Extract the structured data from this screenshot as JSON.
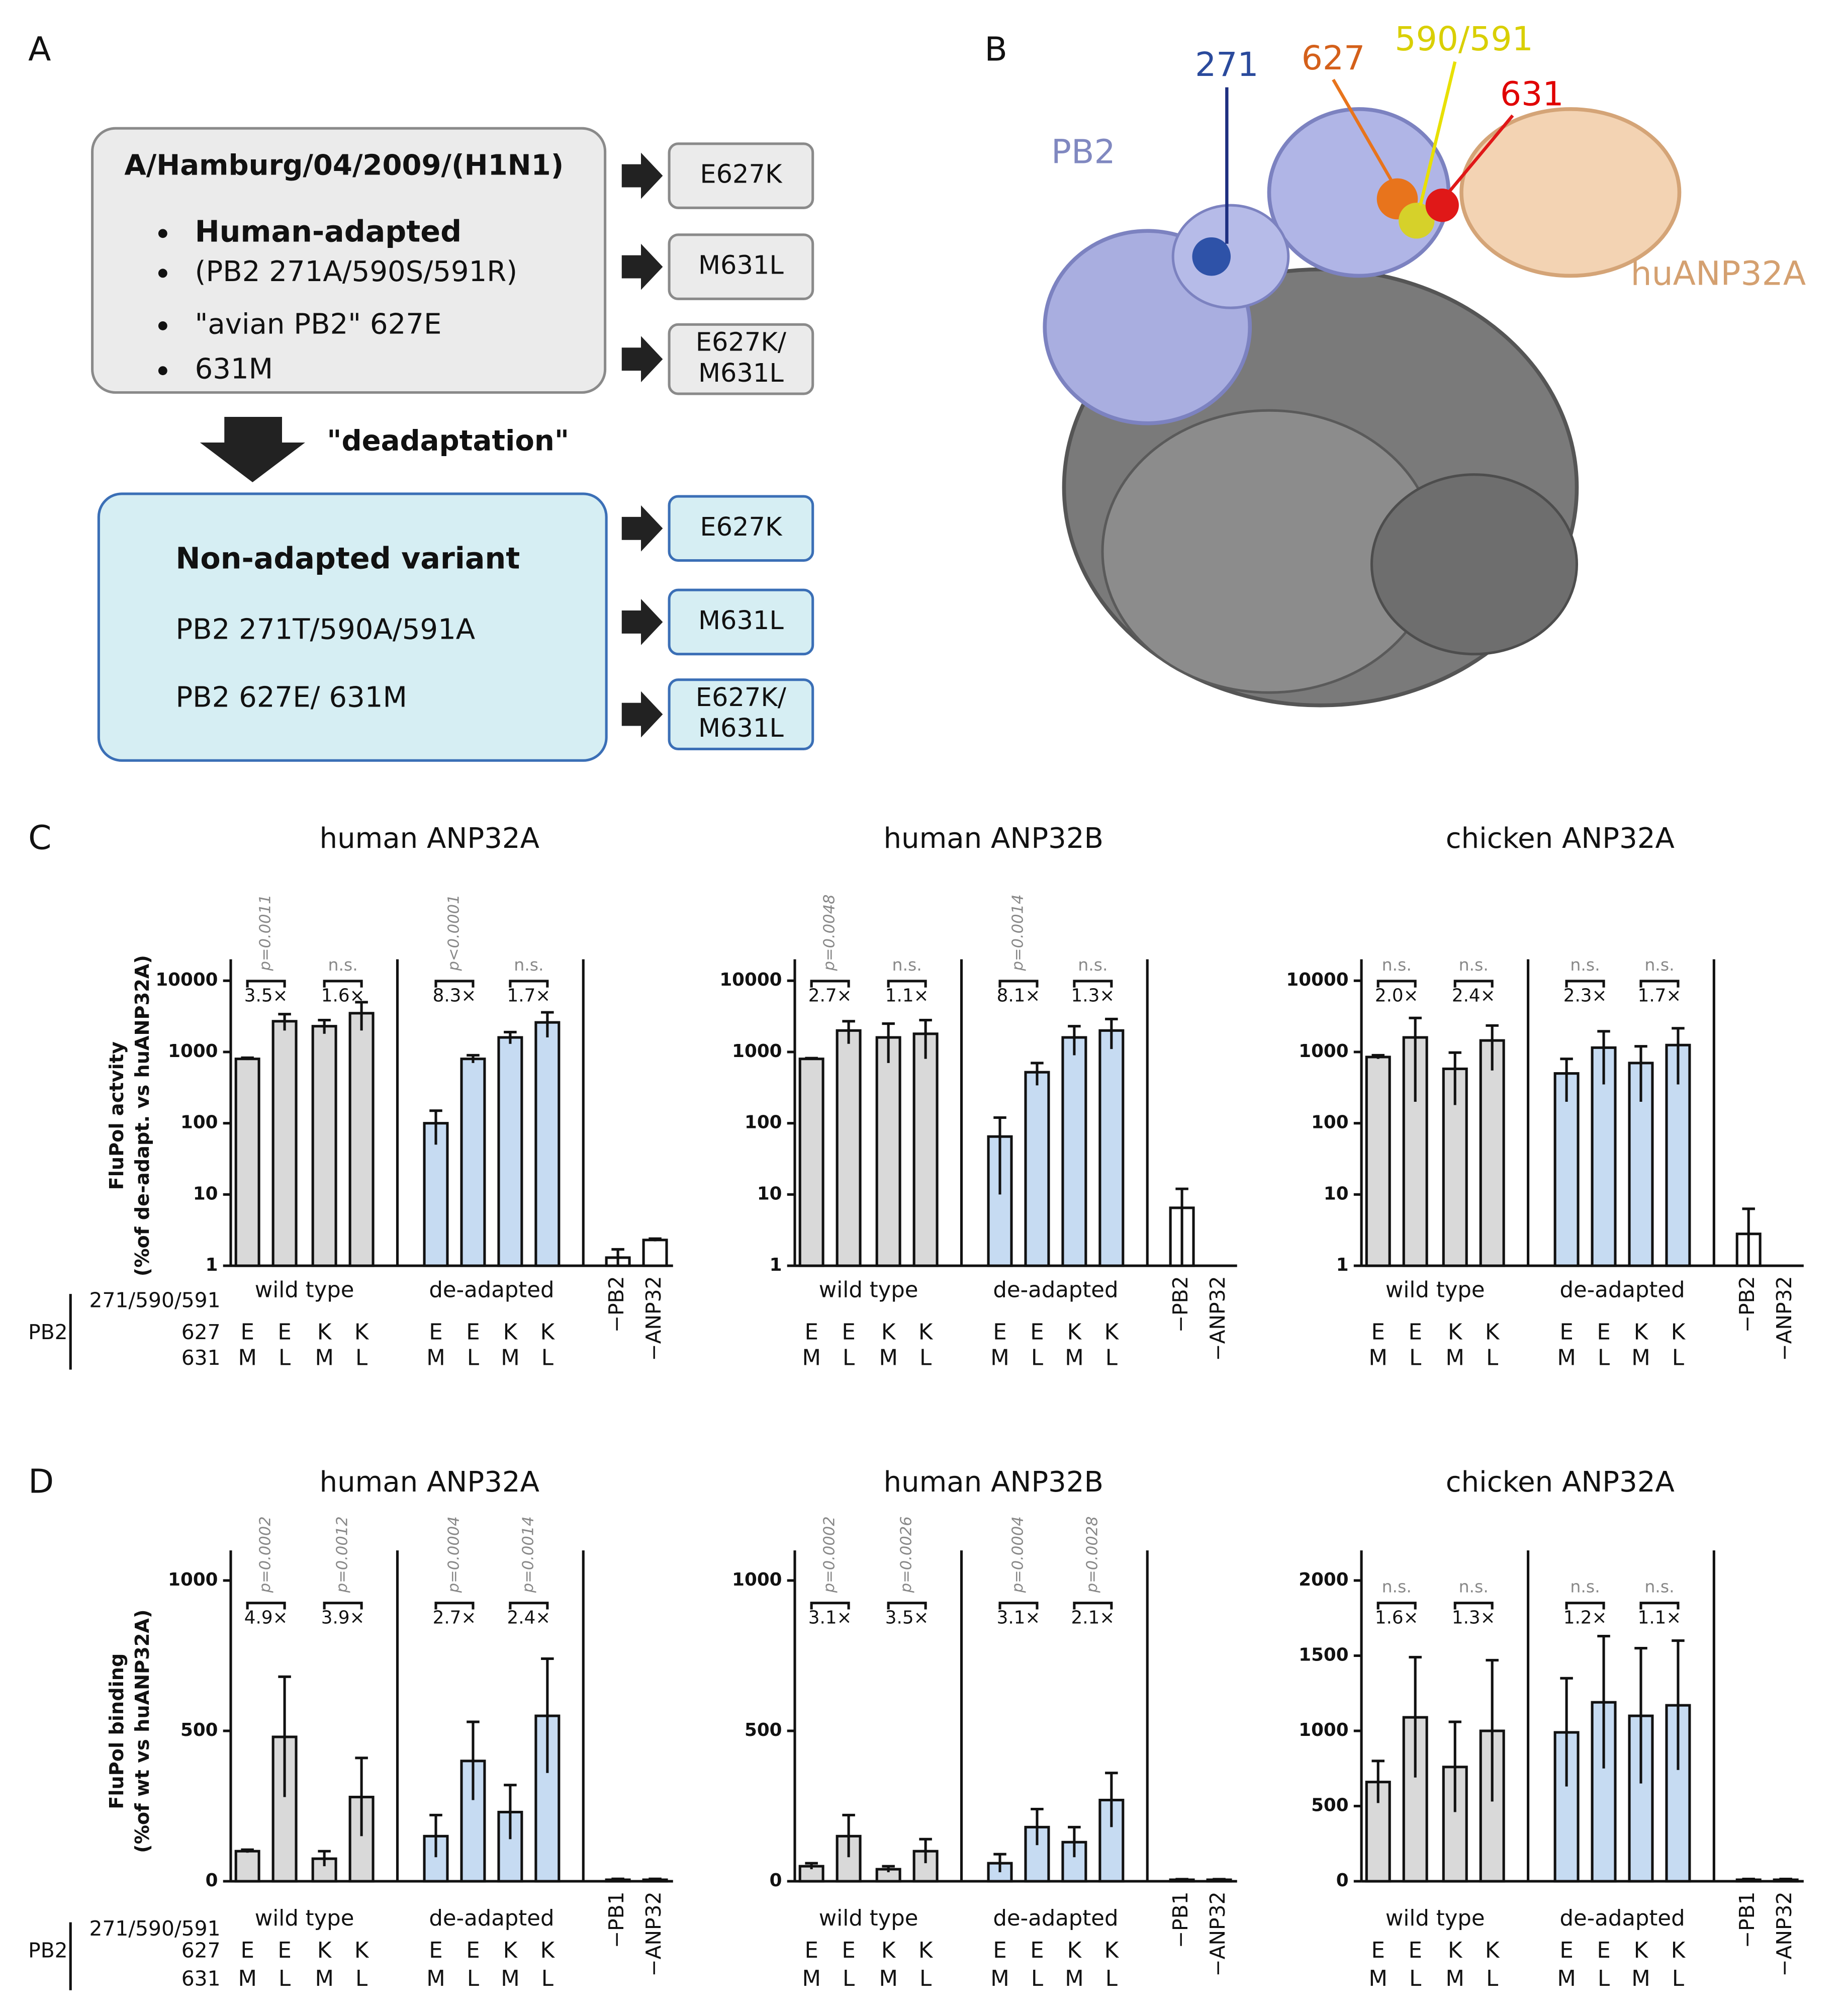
{
  "panel_labels": [
    "A",
    "B",
    "C",
    "D"
  ],
  "panel_a": {
    "top_box": {
      "title": "A/Hamburg/04/2009/(H1N1)",
      "bullets": [
        "Human-adapted",
        "(PB2 271A/590S/591R)",
        "\"avian PB2\" 627E",
        "631M"
      ]
    },
    "mutants_top": [
      [
        "E627K"
      ],
      [
        "M631L"
      ],
      [
        "E627K/",
        "M631L"
      ]
    ],
    "arrow_label": "\"deadaptation\"",
    "bottom_box": {
      "title": "Non-adapted variant",
      "lines": [
        "PB2 271T/590A/591A",
        "PB2 627E/ 631M"
      ]
    },
    "mutants_bottom": [
      [
        "E627K"
      ],
      [
        "M631L"
      ],
      [
        "E627K/",
        "M631L"
      ]
    ]
  },
  "panel_b": {
    "labels": [
      "271",
      "627",
      "590/591",
      "631",
      "PB2",
      "huANP32A"
    ]
  },
  "chart_data": [
    {
      "type": "bar",
      "title": "human ANP32A",
      "ylabel": [
        "FluPol actvity",
        "(%of de-adapt. vs huANP32A)"
      ],
      "log_scale": true,
      "ylim": [
        1,
        20000
      ],
      "yticks": [
        1,
        10,
        100,
        1000,
        10000
      ],
      "x_row_labels": [
        "271/590/591",
        "627",
        "631"
      ],
      "x_side_label": "PB2",
      "groups": [
        "wild type",
        "de-adapted"
      ],
      "categories": [
        null,
        null,
        null,
        null,
        null,
        null,
        null,
        null,
        "−PB2",
        "−ANP32"
      ],
      "x_rows": [
        [
          "E",
          "E",
          "K",
          "K",
          "E",
          "E",
          "K",
          "K",
          null,
          null
        ],
        [
          "M",
          "L",
          "M",
          "L",
          "M",
          "L",
          "M",
          "L",
          null,
          null
        ]
      ],
      "values": [
        800,
        2700,
        2300,
        3500,
        100,
        800,
        1600,
        2600,
        1.3,
        2.3
      ],
      "errors": [
        30,
        700,
        500,
        1500,
        50,
        100,
        300,
        1000,
        0.4,
        0.1
      ],
      "group_colors": [
        "#d9d9d9",
        "#c6dbf2"
      ],
      "control_color": "#ffffff",
      "comparisons": [
        {
          "p": "p=0.0011",
          "fold": "3.5×"
        },
        {
          "p": "n.s.",
          "fold": "1.6×"
        },
        {
          "p": "p<0.0001",
          "fold": "8.3×"
        },
        {
          "p": "n.s.",
          "fold": "1.7×"
        }
      ]
    },
    {
      "type": "bar",
      "title": "human ANP32B",
      "log_scale": true,
      "ylim": [
        1,
        20000
      ],
      "yticks": [
        1,
        10,
        100,
        1000,
        10000
      ],
      "groups": [
        "wild type",
        "de-adapted"
      ],
      "categories": [
        null,
        null,
        null,
        null,
        null,
        null,
        null,
        null,
        "−PB2",
        "−ANP32"
      ],
      "x_rows": [
        [
          "E",
          "E",
          "K",
          "K",
          "E",
          "E",
          "K",
          "K",
          null,
          null
        ],
        [
          "M",
          "L",
          "M",
          "L",
          "M",
          "L",
          "M",
          "L",
          null,
          null
        ]
      ],
      "values": [
        800,
        2000,
        1600,
        1800,
        65,
        520,
        1600,
        2000,
        6.5,
        null
      ],
      "errors": [
        20,
        700,
        900,
        1000,
        55,
        180,
        700,
        900,
        5.5,
        null
      ],
      "group_colors": [
        "#d9d9d9",
        "#c6dbf2"
      ],
      "control_color": "#ffffff",
      "comparisons": [
        {
          "p": "p=0.0048",
          "fold": "2.7×"
        },
        {
          "p": "n.s.",
          "fold": "1.1×"
        },
        {
          "p": "p=0.0014",
          "fold": "8.1×"
        },
        {
          "p": "n.s.",
          "fold": "1.3×"
        }
      ]
    },
    {
      "type": "bar",
      "title": "chicken ANP32A",
      "log_scale": true,
      "ylim": [
        1,
        20000
      ],
      "yticks": [
        1,
        10,
        100,
        1000,
        10000
      ],
      "groups": [
        "wild type",
        "de-adapted"
      ],
      "categories": [
        null,
        null,
        null,
        null,
        null,
        null,
        null,
        null,
        "−PB2",
        "−ANP32"
      ],
      "x_rows": [
        [
          "E",
          "E",
          "K",
          "K",
          "E",
          "E",
          "K",
          "K",
          null,
          null
        ],
        [
          "M",
          "L",
          "M",
          "L",
          "M",
          "L",
          "M",
          "L",
          null,
          null
        ]
      ],
      "values": [
        850,
        1600,
        580,
        1450,
        500,
        1150,
        700,
        1250,
        2.8,
        null
      ],
      "errors": [
        50,
        1400,
        400,
        900,
        300,
        800,
        500,
        900,
        3.5,
        null
      ],
      "group_colors": [
        "#d9d9d9",
        "#c6dbf2"
      ],
      "control_color": "#ffffff",
      "comparisons": [
        {
          "p": "n.s.",
          "fold": "2.0×"
        },
        {
          "p": "n.s.",
          "fold": "2.4×"
        },
        {
          "p": "n.s.",
          "fold": "2.3×"
        },
        {
          "p": "n.s.",
          "fold": "1.7×"
        }
      ]
    },
    {
      "type": "bar",
      "title": "human ANP32A",
      "ylabel": [
        "FluPol binding",
        "(%of wt vs huANP32A)"
      ],
      "log_scale": false,
      "ylim": [
        0,
        1100
      ],
      "yticks": [
        0,
        500,
        1000
      ],
      "x_row_labels": [
        "271/590/591",
        "627",
        "631"
      ],
      "x_side_label": "PB2",
      "groups": [
        "wild type",
        "de-adapted"
      ],
      "categories": [
        null,
        null,
        null,
        null,
        null,
        null,
        null,
        null,
        "−PB1",
        "−ANP32"
      ],
      "x_rows": [
        [
          "E",
          "E",
          "K",
          "K",
          "E",
          "E",
          "K",
          "K",
          null,
          null
        ],
        [
          "M",
          "L",
          "M",
          "L",
          "M",
          "L",
          "M",
          "L",
          null,
          null
        ]
      ],
      "values": [
        100,
        480,
        75,
        280,
        150,
        400,
        230,
        550,
        5,
        5
      ],
      "errors": [
        5,
        200,
        25,
        130,
        70,
        130,
        90,
        190,
        3,
        3
      ],
      "group_colors": [
        "#d9d9d9",
        "#c6dbf2"
      ],
      "control_color": "#ffffff",
      "comparisons": [
        {
          "p": "p=0.0002",
          "fold": "4.9×"
        },
        {
          "p": "p=0.0012",
          "fold": "3.9×"
        },
        {
          "p": "p=0.0004",
          "fold": "2.7×"
        },
        {
          "p": "p=0.0014",
          "fold": "2.4×"
        }
      ]
    },
    {
      "type": "bar",
      "title": "human ANP32B",
      "log_scale": false,
      "ylim": [
        0,
        1100
      ],
      "yticks": [
        0,
        500,
        1000
      ],
      "groups": [
        "wild type",
        "de-adapted"
      ],
      "categories": [
        null,
        null,
        null,
        null,
        null,
        null,
        null,
        null,
        "−PB1",
        "−ANP32"
      ],
      "x_rows": [
        [
          "E",
          "E",
          "K",
          "K",
          "E",
          "E",
          "K",
          "K",
          null,
          null
        ],
        [
          "M",
          "L",
          "M",
          "L",
          "M",
          "L",
          "M",
          "L",
          null,
          null
        ]
      ],
      "values": [
        50,
        150,
        40,
        100,
        60,
        180,
        130,
        270,
        5,
        5
      ],
      "errors": [
        10,
        70,
        10,
        40,
        30,
        60,
        50,
        90,
        2,
        2
      ],
      "group_colors": [
        "#d9d9d9",
        "#c6dbf2"
      ],
      "control_color": "#ffffff",
      "comparisons": [
        {
          "p": "p=0.0002",
          "fold": "3.1×"
        },
        {
          "p": "p=0.0026",
          "fold": "3.5×"
        },
        {
          "p": "p=0.0004",
          "fold": "3.1×"
        },
        {
          "p": "p=0.0028",
          "fold": "2.1×"
        }
      ]
    },
    {
      "type": "bar",
      "title": "chicken ANP32A",
      "log_scale": false,
      "ylim": [
        0,
        2200
      ],
      "yticks": [
        0,
        500,
        1000,
        1500,
        2000
      ],
      "groups": [
        "wild type",
        "de-adapted"
      ],
      "categories": [
        null,
        null,
        null,
        null,
        null,
        null,
        null,
        null,
        "−PB1",
        "−ANP32"
      ],
      "x_rows": [
        [
          "E",
          "E",
          "K",
          "K",
          "E",
          "E",
          "K",
          "K",
          null,
          null
        ],
        [
          "M",
          "L",
          "M",
          "L",
          "M",
          "L",
          "M",
          "L",
          null,
          null
        ]
      ],
      "values": [
        660,
        1090,
        760,
        1000,
        990,
        1190,
        1100,
        1170,
        10,
        10
      ],
      "errors": [
        140,
        400,
        300,
        470,
        360,
        440,
        450,
        430,
        5,
        5
      ],
      "group_colors": [
        "#d9d9d9",
        "#c6dbf2"
      ],
      "control_color": "#ffffff",
      "comparisons": [
        {
          "p": "n.s.",
          "fold": "1.6×"
        },
        {
          "p": "n.s.",
          "fold": "1.3×"
        },
        {
          "p": "n.s.",
          "fold": "1.2×"
        },
        {
          "p": "n.s.",
          "fold": "1.1×"
        }
      ]
    }
  ]
}
